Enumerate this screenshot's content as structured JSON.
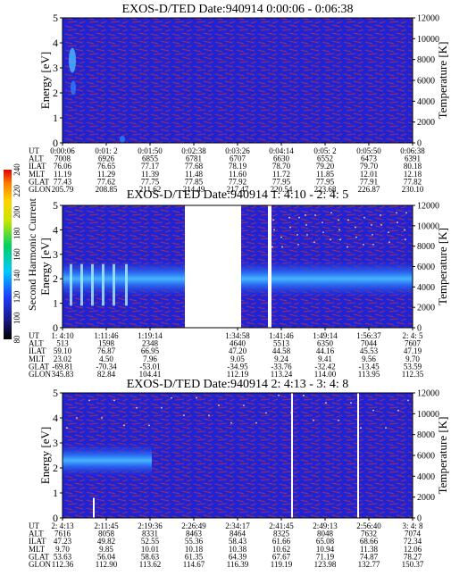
{
  "chart_data": [
    {
      "type": "heatmap",
      "title": "EXOS-D/TED  Date:940914  0:00:06 - 0:06:38",
      "ylabel": "Energy [eV]",
      "y2label": "Temperature [K]",
      "ylim": [
        0,
        5
      ],
      "y2lim": [
        0,
        12000
      ],
      "y_ticks": [
        "0",
        "1",
        "2",
        "3",
        "4",
        "5"
      ],
      "y2_ticks": [
        "0",
        "2000",
        "4000",
        "6000",
        "8000",
        "10000",
        "12000"
      ],
      "row_labels": [
        "UT",
        "ALT",
        "ILAT",
        "MLT",
        "GLAT",
        "GLON"
      ],
      "columns": [
        [
          "0:00:06",
          "7008",
          "76.06",
          "11.19",
          "77.43",
          "205.79"
        ],
        [
          "0:01: 2",
          "6926",
          "76.65",
          "11.29",
          "77.62",
          "208.85"
        ],
        [
          "0:01:50",
          "6855",
          "77.17",
          "11.39",
          "77.75",
          "211.62"
        ],
        [
          "0:02:38",
          "6781",
          "77.68",
          "11.48",
          "77.85",
          "214.49"
        ],
        [
          "0:03:26",
          "6707",
          "78.19",
          "11.60",
          "77.92",
          "217.47"
        ],
        [
          "0:04:14",
          "6630",
          "78.70",
          "11.72",
          "77.95",
          "220.54"
        ],
        [
          "0:05: 2",
          "6552",
          "79.20",
          "11.85",
          "77.95",
          "223.68"
        ],
        [
          "0:05:50",
          "6473",
          "79.70",
          "12.01",
          "77.91",
          "226.87"
        ],
        [
          "0:06:38",
          "6391",
          "80.18",
          "12.18",
          "77.82",
          "230.10"
        ]
      ]
    },
    {
      "type": "heatmap",
      "title": "EXOS-D/TED   Date:940914  1: 4:10 - 2: 4: 5",
      "ylabel": "Energy [eV]",
      "y2label": "Temperature [K]",
      "ylim": [
        0,
        5
      ],
      "y2lim": [
        0,
        12000
      ],
      "y_ticks": [
        "0",
        "1",
        "2",
        "3",
        "4",
        "5"
      ],
      "y2_ticks": [
        "0",
        "2000",
        "4000",
        "6000",
        "8000",
        "10000",
        "12000"
      ],
      "row_labels": [
        "UT",
        "ALT",
        "ILAT",
        "MLT",
        "GLAT",
        "GLON"
      ],
      "columns": [
        [
          "1: 4:10",
          "513",
          "59.10",
          "23.02",
          "-69.81",
          "345.83"
        ],
        [
          "1:11:46",
          "1598",
          "76.87",
          "4.50",
          "-70.34",
          "82.84"
        ],
        [
          "1:19:14",
          "2348",
          "66.95",
          "7.96",
          "-53.01",
          "104.41"
        ],
        [
          "1:34:58",
          "4640",
          "47.20",
          "9.05",
          "-34.95",
          "112.19"
        ],
        [
          "1:41:46",
          "5513",
          "44.58",
          "9.24",
          "-33.76",
          "113.24"
        ],
        [
          "1:49:14",
          "6350",
          "44.16",
          "9.41",
          "-32.42",
          "114.00"
        ],
        [
          "1:56:37",
          "7044",
          "45.53",
          "9.56",
          "-13.45",
          "113.95"
        ],
        [
          "2: 4: 5",
          "7607",
          "47.19",
          "9.70",
          "53.59",
          "112.35"
        ]
      ],
      "colorbar": {
        "label": "Second Harmonic Current",
        "ticks": [
          "80",
          "100",
          "120",
          "140",
          "160",
          "180",
          "200",
          "220",
          "240"
        ],
        "range": [
          80,
          240
        ]
      }
    },
    {
      "type": "heatmap",
      "title": "EXOS-D/TED   Date:940914  2: 4:13 - 3: 4: 8",
      "ylabel": "Energy [eV]",
      "y2label": "Temperature [K]",
      "ylim": [
        0,
        5
      ],
      "y2lim": [
        0,
        12000
      ],
      "y_ticks": [
        "0",
        "1",
        "2",
        "3",
        "4",
        "5"
      ],
      "y2_ticks": [
        "0",
        "2000",
        "4000",
        "6000",
        "8000",
        "10000",
        "12000"
      ],
      "row_labels": [
        "UT",
        "ALT",
        "ILAT",
        "MLT",
        "GLAT",
        "GLON"
      ],
      "columns": [
        [
          "2: 4:13",
          "7616",
          "47.23",
          "9.70",
          "53.63",
          "112.36"
        ],
        [
          "2:11:45",
          "8058",
          "49.82",
          "9.85",
          "56.04",
          "112.90"
        ],
        [
          "2:19:36",
          "8331",
          "52.55",
          "10.01",
          "58.63",
          "113.62"
        ],
        [
          "2:26:49",
          "8463",
          "55.36",
          "10.18",
          "61.35",
          "114.67"
        ],
        [
          "2:34:17",
          "8464",
          "58.43",
          "10.38",
          "64.39",
          "116.39"
        ],
        [
          "2:41:45",
          "8325",
          "61.66",
          "10.62",
          "67.67",
          "119.19"
        ],
        [
          "2:49:13",
          "8048",
          "65.08",
          "10.94",
          "71.19",
          "123.98"
        ],
        [
          "2:56:40",
          "7632",
          "68.66",
          "11.38",
          "74.87",
          "132.77"
        ],
        [
          "3: 4: 8",
          "7074",
          "72.34",
          "12.06",
          "78.27",
          "150.37"
        ]
      ]
    }
  ],
  "colors": {
    "background": "#1e23d6",
    "speckle": "#8a2d6e",
    "band_mid": "#2b6cf2",
    "band_core": "#45b4ff",
    "gap": "#ffffff"
  }
}
